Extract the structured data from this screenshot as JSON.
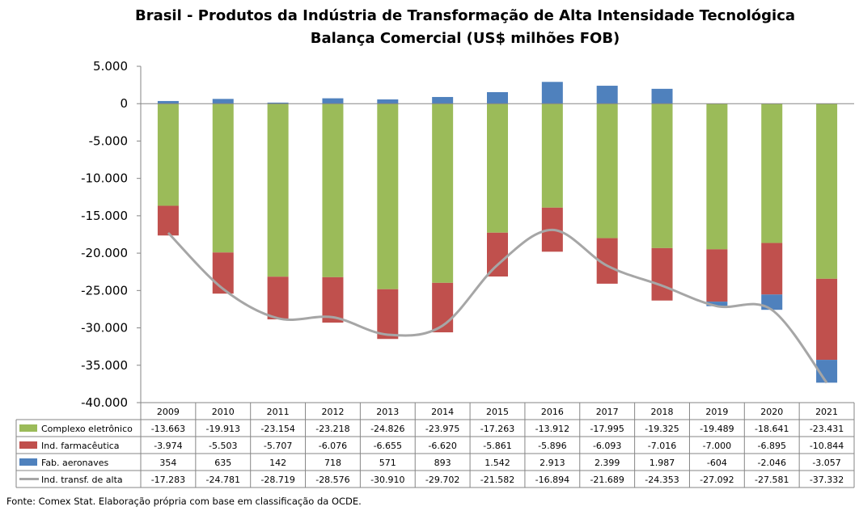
{
  "chart_data": {
    "type": "bar",
    "stacked": true,
    "title": "Brasil - Produtos da Indústria de Transformação de Alta Intensidade Tecnológica",
    "subtitle": "Balança Comercial (US$ milhões FOB)",
    "categories": [
      "2009",
      "2010",
      "2011",
      "2012",
      "2013",
      "2014",
      "2015",
      "2016",
      "2017",
      "2018",
      "2019",
      "2020",
      "2021"
    ],
    "ylim": [
      -40000,
      5000
    ],
    "y_ticks": [
      5000,
      0,
      -5000,
      -10000,
      -15000,
      -20000,
      -25000,
      -30000,
      -35000,
      -40000
    ],
    "y_tick_labels": [
      "5.000",
      "0",
      "-5.000",
      "-10.000",
      "-15.000",
      "-20.000",
      "-25.000",
      "-30.000",
      "-35.000",
      "-40.000"
    ],
    "grid": false,
    "legend": "data-table",
    "series": [
      {
        "name": "Complexo eletrônico",
        "type": "bar",
        "color": "#9BBB59",
        "values": [
          -13663,
          -19913,
          -23154,
          -23218,
          -24826,
          -23975,
          -17263,
          -13912,
          -17995,
          -19325,
          -19489,
          -18641,
          -23431
        ],
        "labels": [
          "-13.663",
          "-19.913",
          "-23.154",
          "-23.218",
          "-24.826",
          "-23.975",
          "-17.263",
          "-13.912",
          "-17.995",
          "-19.325",
          "-19.489",
          "-18.641",
          "-23.431"
        ]
      },
      {
        "name": "Ind. farmacêutica",
        "type": "bar",
        "color": "#C0504D",
        "values": [
          -3974,
          -5503,
          -5707,
          -6076,
          -6655,
          -6620,
          -5861,
          -5896,
          -6093,
          -7016,
          -7000,
          -6895,
          -10844
        ],
        "labels": [
          "-3.974",
          "-5.503",
          "-5.707",
          "-6.076",
          "-6.655",
          "-6.620",
          "-5.861",
          "-5.896",
          "-6.093",
          "-7.016",
          "-7.000",
          "-6.895",
          "-10.844"
        ]
      },
      {
        "name": "Fab. aeronaves",
        "type": "bar",
        "color": "#4F81BD",
        "values": [
          354,
          635,
          142,
          718,
          571,
          893,
          1542,
          2913,
          2399,
          1987,
          -604,
          -2046,
          -3057
        ],
        "labels": [
          "354",
          "635",
          "142",
          "718",
          "571",
          "893",
          "1.542",
          "2.913",
          "2.399",
          "1.987",
          "-604",
          "-2.046",
          "-3.057"
        ]
      },
      {
        "name": "Ind. transf. de alta",
        "type": "line",
        "color": "#A6A6A6",
        "values": [
          -17283,
          -24781,
          -28719,
          -28576,
          -30910,
          -29702,
          -21582,
          -16894,
          -21689,
          -24353,
          -27092,
          -27581,
          -37332
        ],
        "labels": [
          "-17.283",
          "-24.781",
          "-28.719",
          "-28.576",
          "-30.910",
          "-29.702",
          "-21.582",
          "-16.894",
          "-21.689",
          "-24.353",
          "-27.092",
          "-27.581",
          "-37.332"
        ]
      }
    ]
  },
  "source_note": "Fonte: Comex Stat. Elaboração própria com base em classificação da OCDE."
}
